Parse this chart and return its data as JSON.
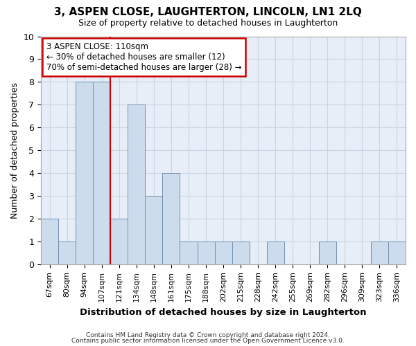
{
  "title": "3, ASPEN CLOSE, LAUGHTERTON, LINCOLN, LN1 2LQ",
  "subtitle": "Size of property relative to detached houses in Laughterton",
  "xlabel": "Distribution of detached houses by size in Laughterton",
  "ylabel": "Number of detached properties",
  "bins": [
    "67sqm",
    "80sqm",
    "94sqm",
    "107sqm",
    "121sqm",
    "134sqm",
    "148sqm",
    "161sqm",
    "175sqm",
    "188sqm",
    "202sqm",
    "215sqm",
    "228sqm",
    "242sqm",
    "255sqm",
    "269sqm",
    "282sqm",
    "296sqm",
    "309sqm",
    "323sqm",
    "336sqm"
  ],
  "values": [
    2,
    1,
    8,
    8,
    2,
    7,
    3,
    4,
    1,
    1,
    1,
    1,
    0,
    1,
    0,
    0,
    1,
    0,
    0,
    1,
    1
  ],
  "bar_color": "#ccdcec",
  "bar_edge_color": "#7090b0",
  "grid_color": "#c8d4e4",
  "background_color": "#e8eef8",
  "vline_x": 3.5,
  "vline_color": "#cc0000",
  "annotation_line1": "3 ASPEN CLOSE: 110sqm",
  "annotation_line2": "← 30% of detached houses are smaller (12)",
  "annotation_line3": "70% of semi-detached houses are larger (28) →",
  "annotation_box_color": "#ffffff",
  "annotation_box_edge": "#cc0000",
  "ylim": [
    0,
    10
  ],
  "yticks": [
    0,
    1,
    2,
    3,
    4,
    5,
    6,
    7,
    8,
    9,
    10
  ],
  "footer_line1": "Contains HM Land Registry data © Crown copyright and database right 2024.",
  "footer_line2": "Contains public sector information licensed under the Open Government Licence v3.0."
}
